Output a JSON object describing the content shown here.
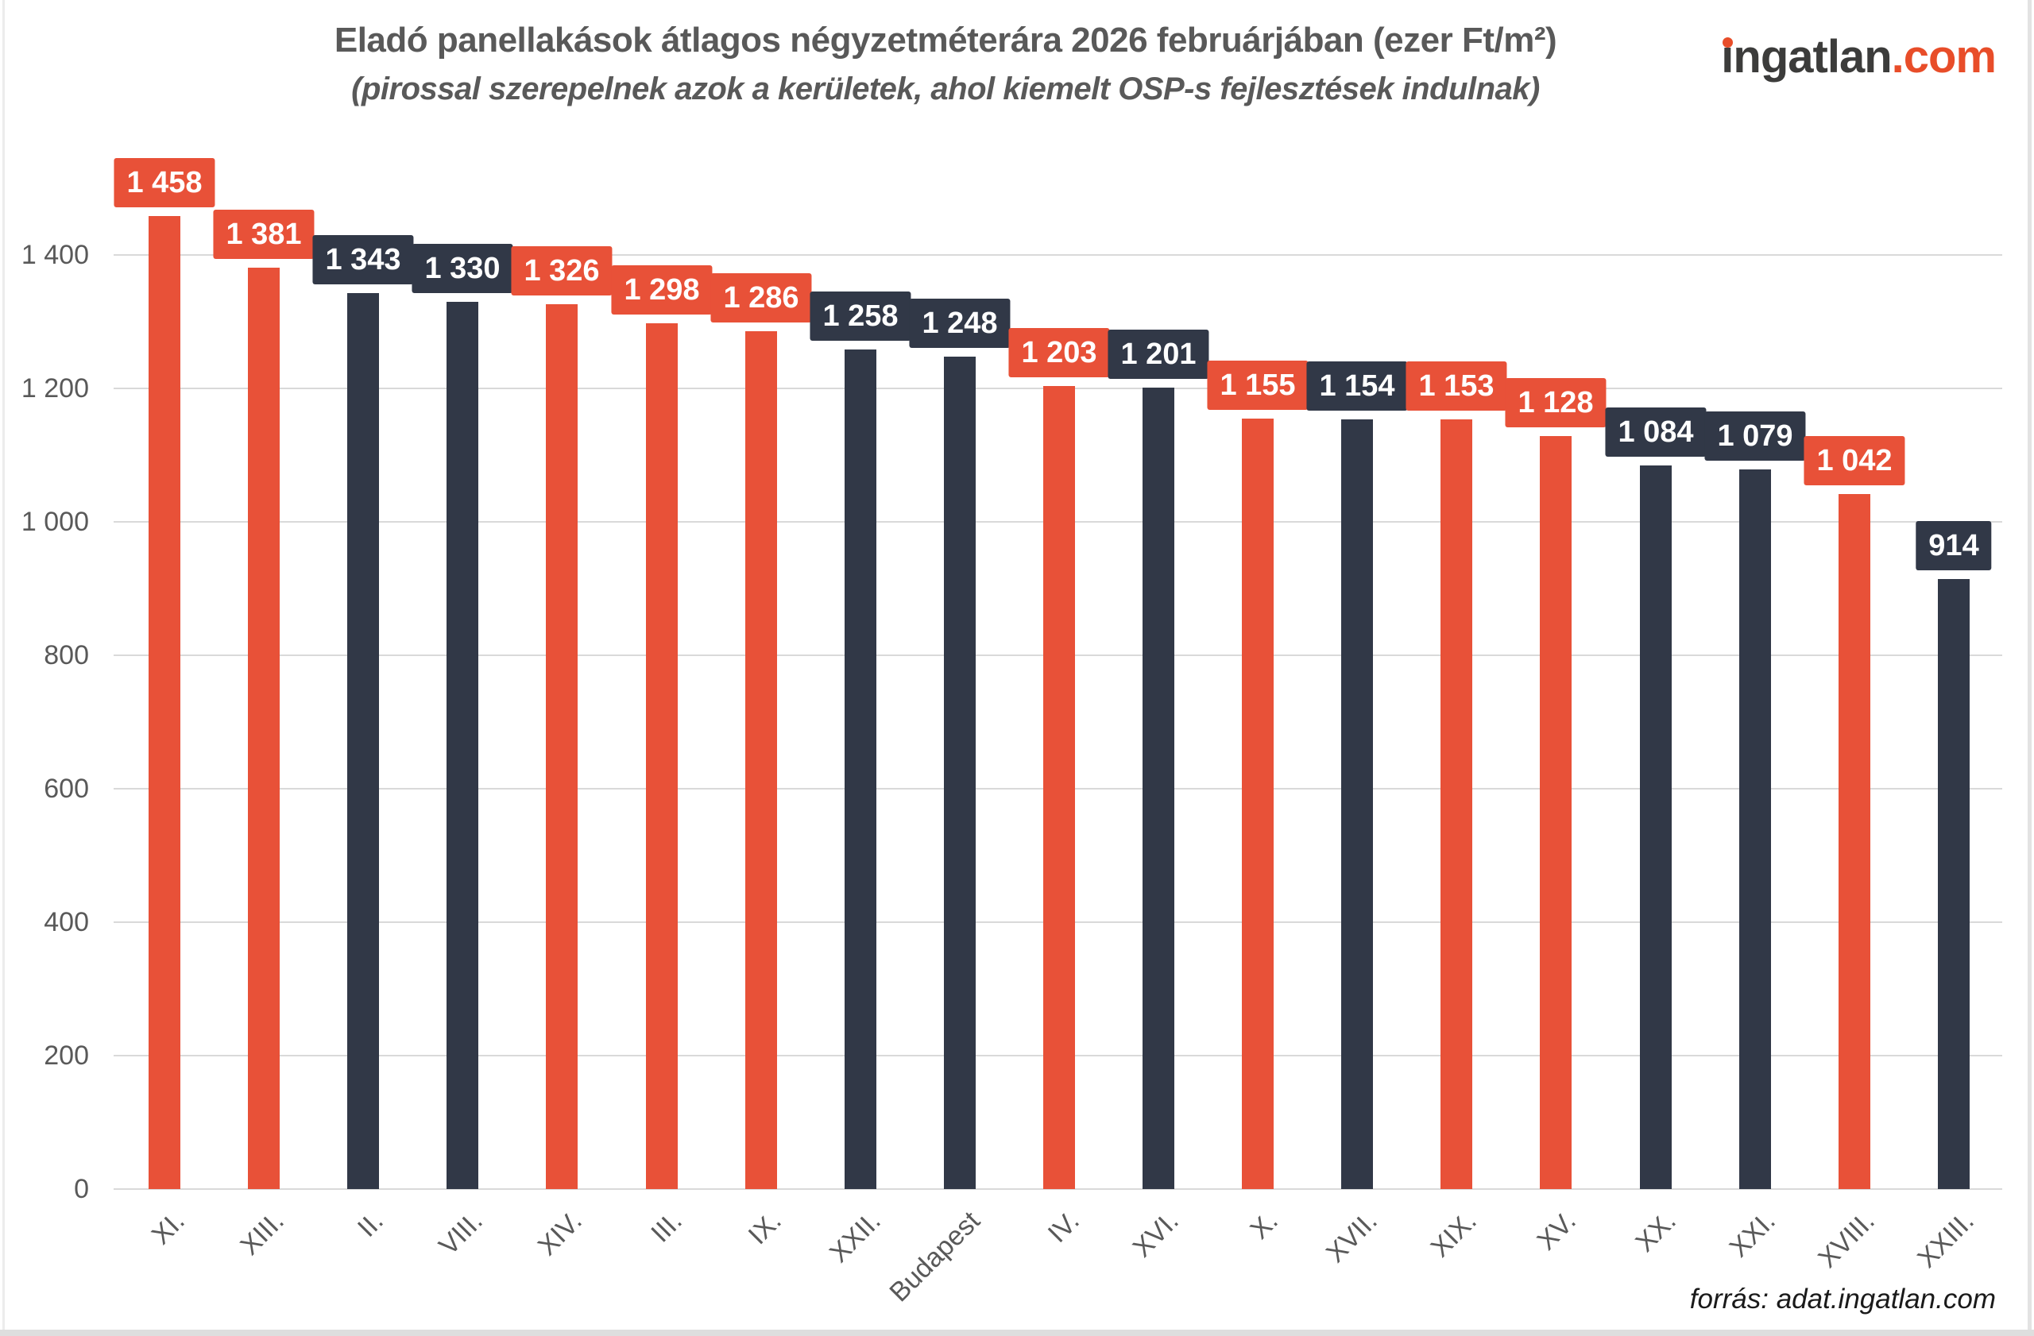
{
  "logo": {
    "text_dark": "ingatlan",
    "text_accent": ".com",
    "accent_color": "#e84d29",
    "dark_color": "#3c3c3b"
  },
  "footer": {
    "source": "forrás: adat.ingatlan.com"
  },
  "chart_data": {
    "type": "bar",
    "title": "Eladó panellakások átlagos négyzetméterára 2026 februárjában (ezer Ft/m²)",
    "subtitle": "(pirossal szerepelnek azok a kerületek, ahol kiemelt OSP-s fejlesztések indulnak)",
    "categories": [
      "XI.",
      "XIII.",
      "II.",
      "VIII.",
      "XIV.",
      "III.",
      "IX.",
      "XXII.",
      "Budapest",
      "IV.",
      "XVI.",
      "X.",
      "XVII.",
      "XIX.",
      "XV.",
      "XX.",
      "XXI.",
      "XVIII.",
      "XXIII."
    ],
    "values": [
      1458,
      1381,
      1343,
      1330,
      1326,
      1298,
      1286,
      1258,
      1248,
      1203,
      1201,
      1155,
      1154,
      1153,
      1128,
      1084,
      1079,
      1042,
      914
    ],
    "value_labels": [
      "1 458",
      "1 381",
      "1 343",
      "1 330",
      "1 326",
      "1 298",
      "1 286",
      "1 258",
      "1 248",
      "1 203",
      "1 201",
      "1 155",
      "1 154",
      "1 153",
      "1 128",
      "1 084",
      "1 079",
      "1 042",
      "914"
    ],
    "highlighted": [
      true,
      true,
      false,
      false,
      true,
      true,
      true,
      false,
      false,
      true,
      false,
      true,
      false,
      true,
      true,
      false,
      false,
      true,
      false
    ],
    "bar_colors": {
      "highlighted": "#e85138",
      "default": "#313847"
    },
    "highlight_meaning": "kerületek, ahol kiemelt OSP-s fejlesztések indulnak",
    "y_axis": {
      "tick_values": [
        0,
        200,
        400,
        600,
        800,
        1000,
        1200,
        1400
      ],
      "tick_labels": [
        "0",
        "200",
        "400",
        "600",
        "800",
        "1 000",
        "1 200",
        "1 400"
      ]
    },
    "ylim": [
      0,
      1500
    ],
    "grid": "horizontal",
    "legend": "none",
    "xlabel": "",
    "ylabel": ""
  }
}
